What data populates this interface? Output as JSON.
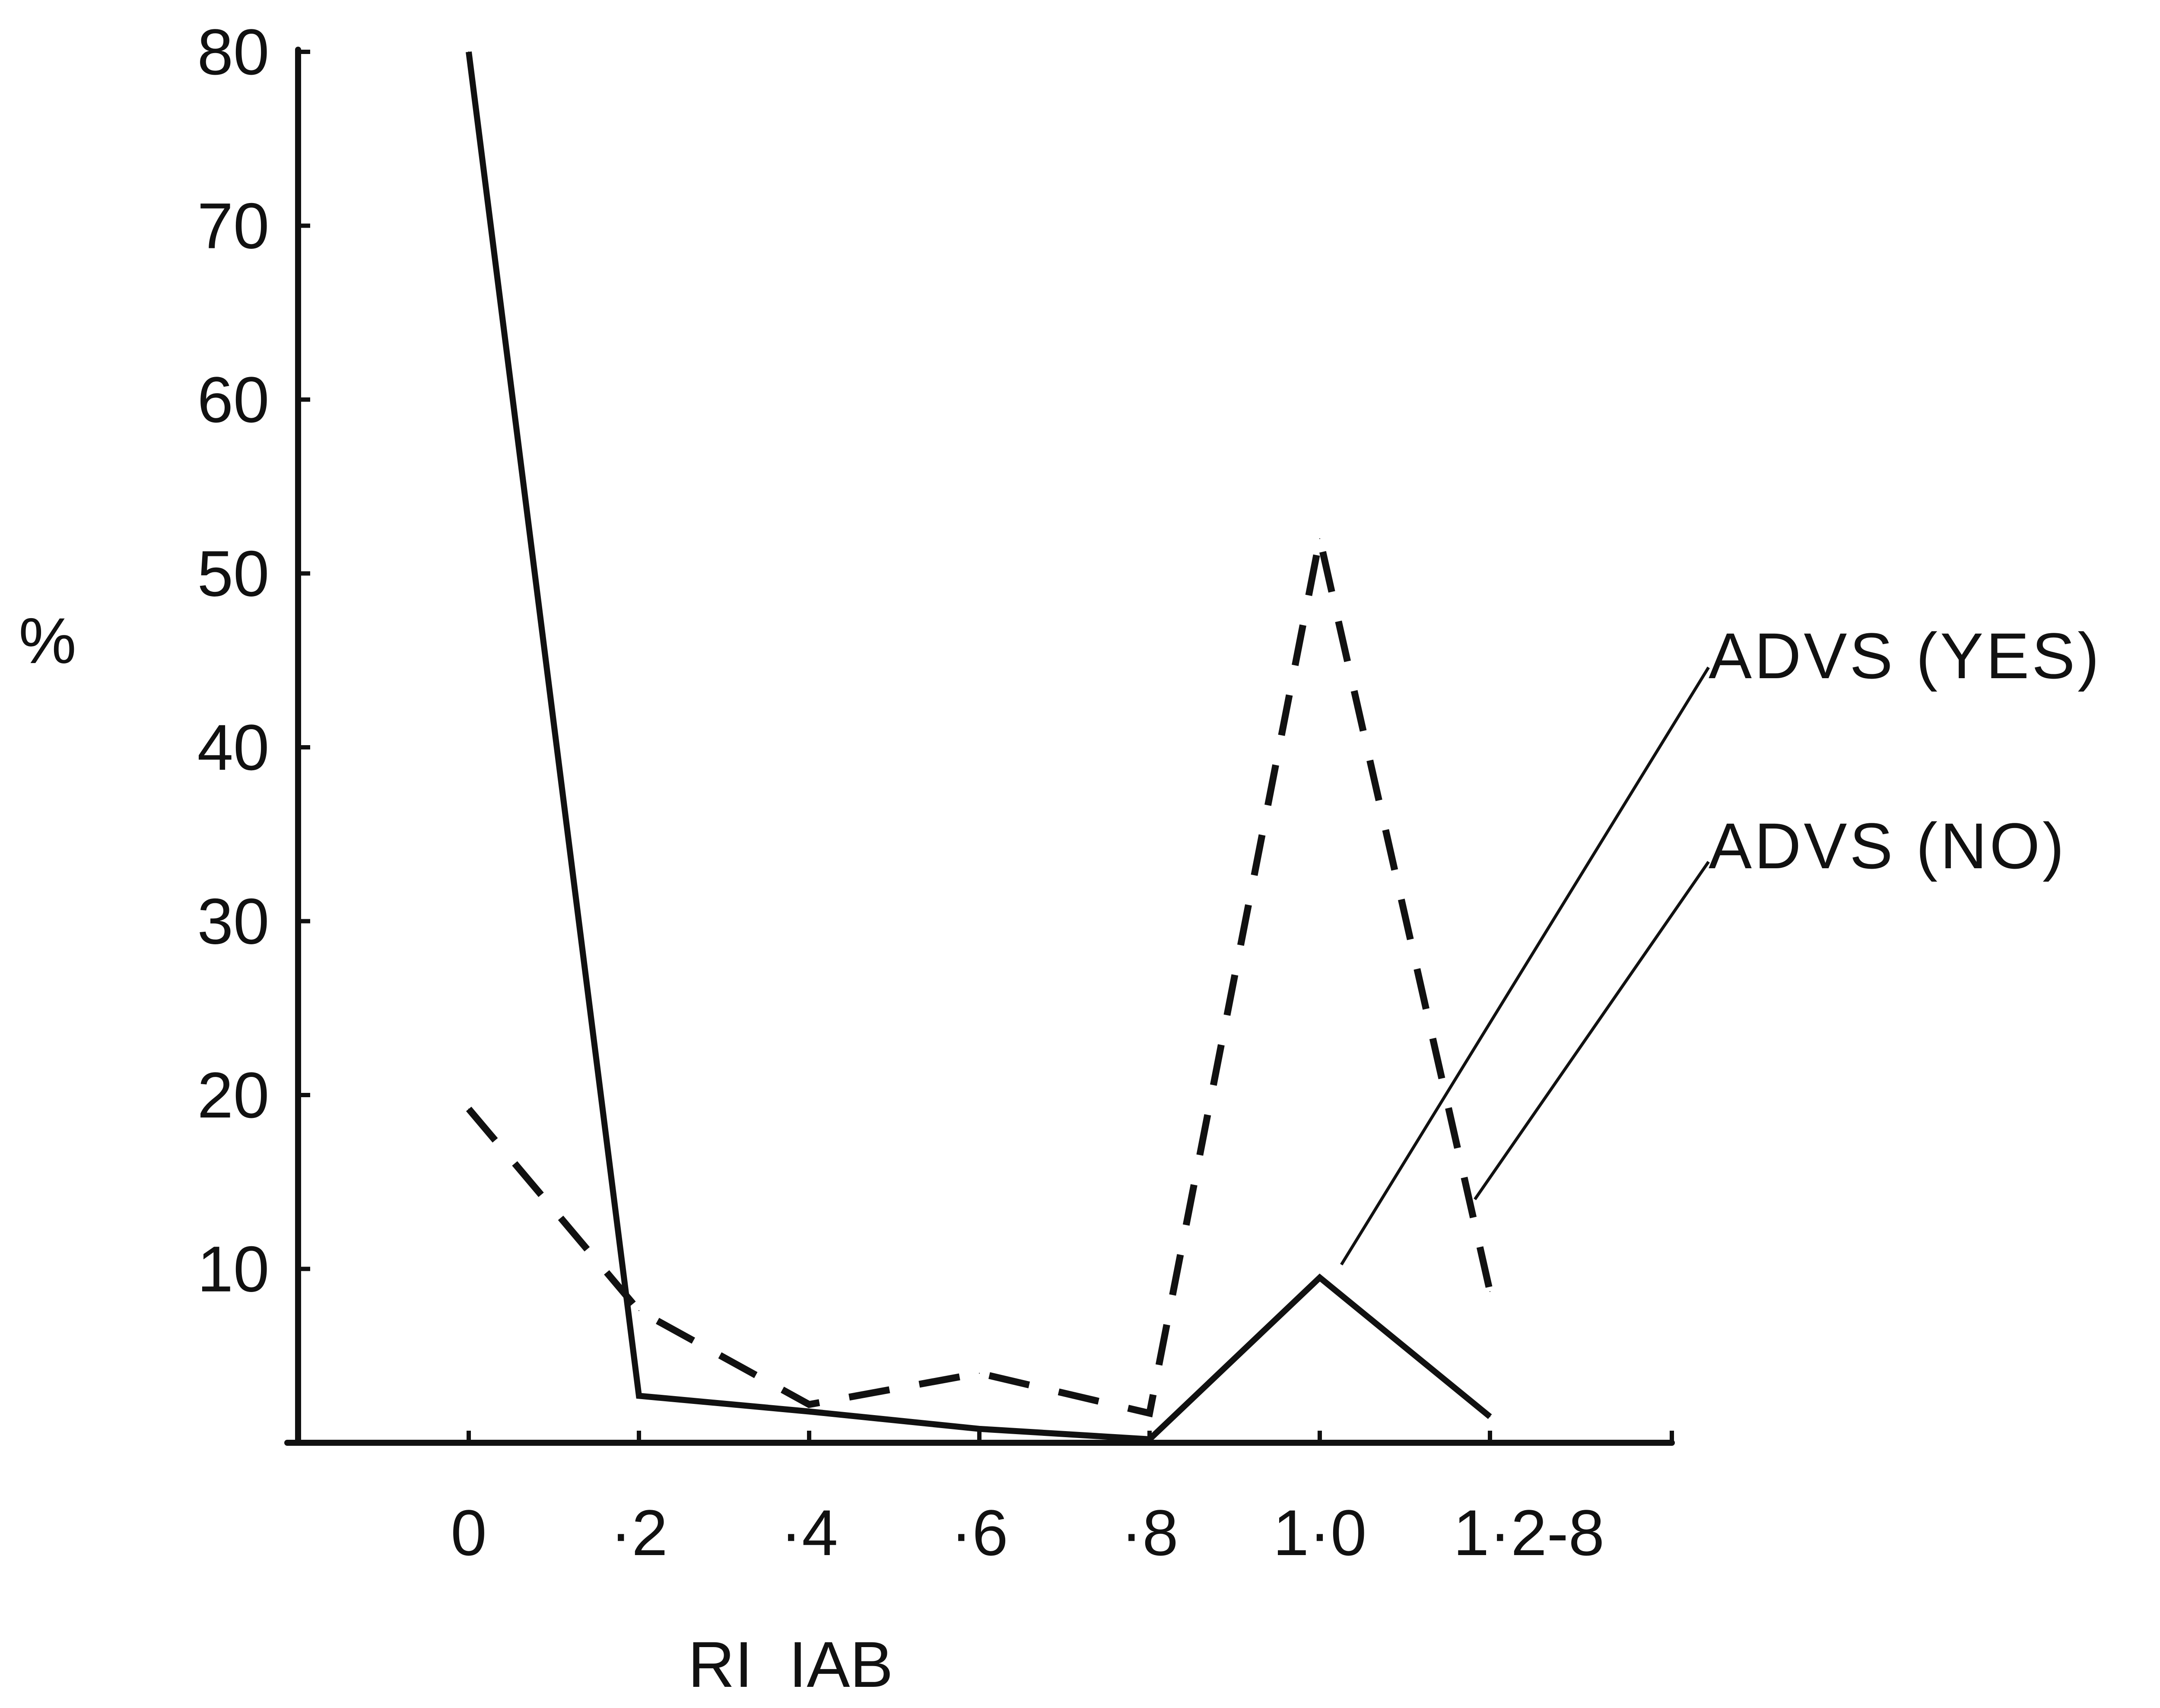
{
  "chart_data": {
    "type": "line",
    "title": "",
    "xlabel": "RI  IAB",
    "ylabel": "%",
    "categories": [
      "0",
      "·2",
      "·4",
      "·6",
      "·8",
      "1·0",
      "1·2-8"
    ],
    "ylim": [
      0,
      80
    ],
    "yticks": [
      "10",
      "20",
      "30",
      "40",
      "50",
      "60",
      "70",
      "80"
    ],
    "grid": false,
    "legend": "right, with leader lines pointing to each series",
    "series": [
      {
        "name": "ADVS (YES)",
        "style": "solid",
        "values": [
          80,
          2.7,
          1.8,
          0.8,
          0.2,
          9.5,
          1.5
        ]
      },
      {
        "name": "ADVS (NO)",
        "style": "dashed",
        "values": [
          19.2,
          7.6,
          2.2,
          4,
          1.7,
          52,
          8.7
        ]
      }
    ],
    "colors": {
      "line": "#111111",
      "background": "#ffffff"
    }
  }
}
